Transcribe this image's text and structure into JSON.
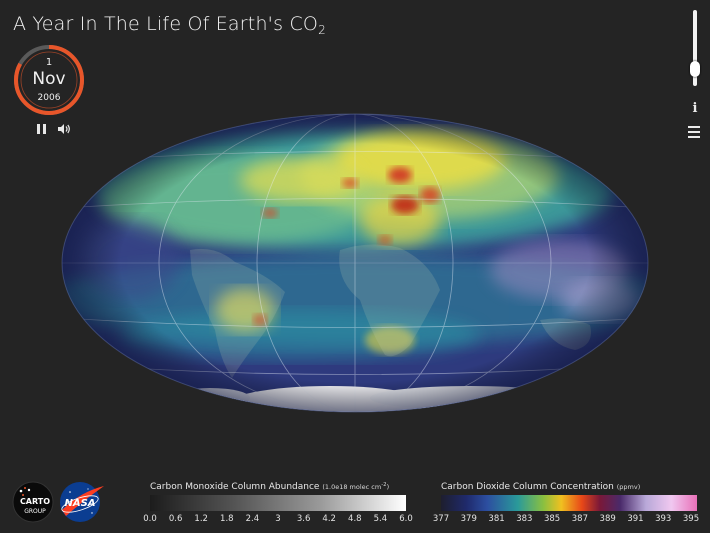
{
  "title": {
    "main": "A Year In The Life Of Earth's CO",
    "sub": "2"
  },
  "date": {
    "day": "1",
    "month": "Nov",
    "year": "2006",
    "progress": 0.83
  },
  "controls": {
    "pause_icon": "pause-icon",
    "sound_icon": "speaker-icon",
    "info_label": "i",
    "menu_icon": "hamburger-menu-icon",
    "slider_level": 0.82
  },
  "logos": {
    "carto_line1": "CARTO",
    "carto_line2": "GROUP",
    "nasa": "NASA"
  },
  "legend_co": {
    "title": "Carbon Monoxide Column Abundance",
    "unit": "(1.0e18 molec cm",
    "unit_sup": "-2",
    "unit_close": ")",
    "ticks": [
      "0.0",
      "0.6",
      "1.2",
      "1.8",
      "2.4",
      "3",
      "3.6",
      "4.2",
      "4.8",
      "5.4",
      "6.0"
    ]
  },
  "legend_co2": {
    "title": "Carbon Dioxide Column Concentration",
    "unit": "(ppmv)",
    "ticks": [
      "377",
      "379",
      "381",
      "383",
      "385",
      "387",
      "389",
      "391",
      "393",
      "395"
    ]
  },
  "colors": {
    "accent": "#e8562a",
    "background": "#242424",
    "ocean": "#2d3a78"
  }
}
